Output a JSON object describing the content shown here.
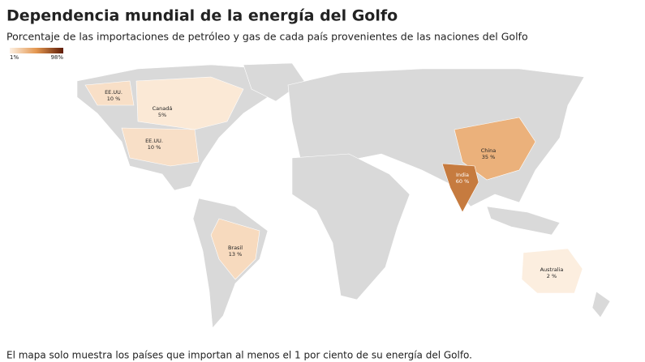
{
  "header": {
    "title": "Dependencia mundial de la energía del Golfo",
    "subtitle": "Porcentaje de las importaciones de petróleo y gas de cada país provenientes de las naciones del Golfo"
  },
  "legend": {
    "min": {
      "value": 1,
      "label": "1%"
    },
    "max": {
      "value": 98,
      "label": "98%"
    },
    "colors": [
      "#fdf0e2",
      "#e3964f",
      "#5e1b06"
    ]
  },
  "regions": [
    {
      "name": "EE.UU.",
      "value": 10,
      "value_label": "10 %"
    },
    {
      "name": "Canadá",
      "value": 5,
      "value_label": "5%"
    },
    {
      "name": "EE.UU.",
      "value": 10,
      "value_label": "10 %"
    },
    {
      "name": "Brasil",
      "value": 13,
      "value_label": "13 %"
    },
    {
      "name": "China",
      "value": 35,
      "value_label": "35 %"
    },
    {
      "name": "India",
      "value": 60,
      "value_label": "60 %"
    },
    {
      "name": "Australia",
      "value": 2,
      "value_label": "2 %"
    }
  ],
  "footnote": "El mapa solo muestra los países que importan al menos el 1 por ciento de su energía del Golfo."
}
